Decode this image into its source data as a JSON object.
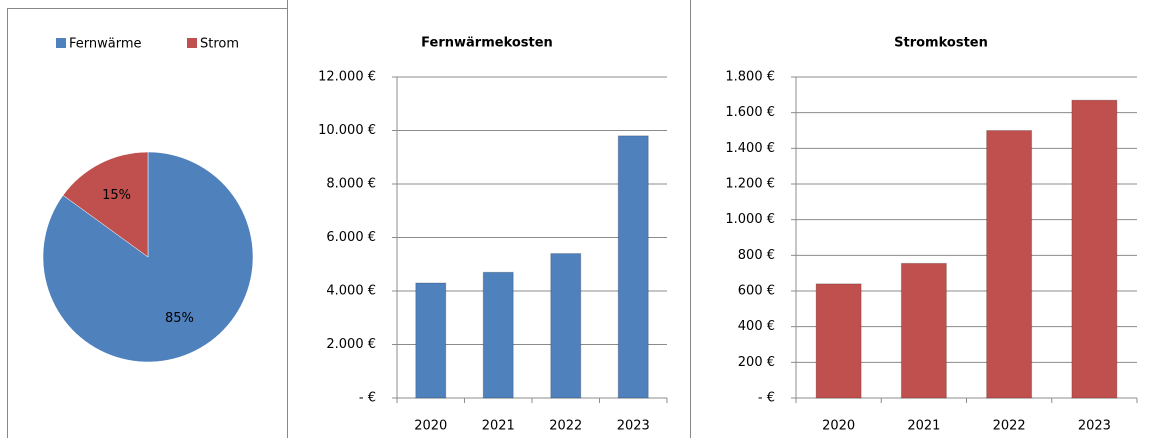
{
  "chart_data": [
    {
      "type": "pie",
      "categories": [
        "Fernwärme",
        "Strom"
      ],
      "values": [
        85,
        15
      ],
      "value_labels": [
        "85%",
        "15%"
      ],
      "colors": [
        "#4f81bd",
        "#c0504d"
      ],
      "legend": "top"
    },
    {
      "type": "bar",
      "title": "Fernwärmekosten",
      "categories": [
        "2020",
        "2021",
        "2022",
        "2023"
      ],
      "values": [
        4300,
        4700,
        5400,
        9800
      ],
      "color": "#4f81bd",
      "ylim": [
        0,
        12000
      ],
      "yticks": [
        {
          "value": 0,
          "label": "-   €"
        },
        {
          "value": 2000,
          "label": "2.000 €"
        },
        {
          "value": 4000,
          "label": "4.000 €"
        },
        {
          "value": 6000,
          "label": "6.000 €"
        },
        {
          "value": 8000,
          "label": "8.000 €"
        },
        {
          "value": 10000,
          "label": "10.000 €"
        },
        {
          "value": 12000,
          "label": "12.000 €"
        }
      ],
      "grid": true
    },
    {
      "type": "bar",
      "title": "Stromkosten",
      "categories": [
        "2020",
        "2021",
        "2022",
        "2023"
      ],
      "values": [
        640,
        755,
        1500,
        1670
      ],
      "color": "#c0504d",
      "ylim": [
        0,
        1800
      ],
      "yticks": [
        {
          "value": 0,
          "label": "-   €"
        },
        {
          "value": 200,
          "label": "200 €"
        },
        {
          "value": 400,
          "label": "400 €"
        },
        {
          "value": 600,
          "label": "600 €"
        },
        {
          "value": 800,
          "label": "800 €"
        },
        {
          "value": 1000,
          "label": "1.000 €"
        },
        {
          "value": 1200,
          "label": "1.200 €"
        },
        {
          "value": 1400,
          "label": "1.400 €"
        },
        {
          "value": 1600,
          "label": "1.600 €"
        },
        {
          "value": 1800,
          "label": "1.800 €"
        }
      ],
      "grid": true
    }
  ]
}
